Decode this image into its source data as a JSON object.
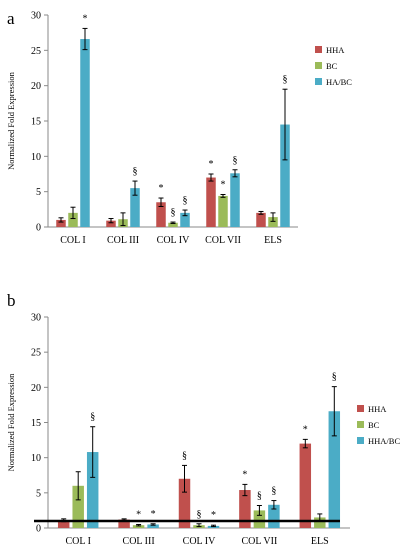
{
  "chart_data": [
    {
      "type": "bar",
      "panel_label": "a",
      "title": "",
      "xlabel": "",
      "ylabel": "Normalized Fold Expression",
      "ylim": [
        0,
        30
      ],
      "yticks": [
        "0",
        "5",
        "10",
        "15",
        "20",
        "25",
        "30"
      ],
      "categories": [
        "COL I",
        "COL III",
        "COL IV",
        "COL VII",
        "ELS"
      ],
      "legend_position": "right",
      "series": [
        {
          "name": "HHA",
          "color": "#c0504d",
          "values": [
            1.0,
            0.9,
            3.5,
            7.0,
            2.0
          ],
          "errors": [
            0.3,
            0.3,
            0.6,
            0.5,
            0.2
          ]
        },
        {
          "name": "BC",
          "color": "#9bbb59",
          "values": [
            2.0,
            1.1,
            0.6,
            4.4,
            1.4
          ],
          "errors": [
            0.8,
            0.9,
            0.1,
            0.2,
            0.6
          ]
        },
        {
          "name": "HA/BC",
          "color": "#4bacc6",
          "values": [
            26.6,
            5.5,
            2.0,
            7.6,
            14.5
          ],
          "errors": [
            1.5,
            1.0,
            0.4,
            0.5,
            5.0
          ]
        }
      ],
      "annotations": [
        {
          "category": 0,
          "series": 2,
          "text": "*"
        },
        {
          "category": 1,
          "series": 2,
          "text": "§"
        },
        {
          "category": 2,
          "series": 0,
          "text": "*"
        },
        {
          "category": 2,
          "series": 1,
          "text": "§"
        },
        {
          "category": 2,
          "series": 2,
          "text": "§"
        },
        {
          "category": 3,
          "series": 0,
          "text": "*"
        },
        {
          "category": 3,
          "series": 1,
          "text": "*"
        },
        {
          "category": 3,
          "series": 2,
          "text": "§"
        },
        {
          "category": 4,
          "series": 2,
          "text": "§"
        }
      ]
    },
    {
      "type": "bar",
      "panel_label": "b",
      "title": "",
      "xlabel": "",
      "ylabel": "Normalized Fold Expression",
      "ylim": [
        0,
        30
      ],
      "yticks": [
        "0",
        "5",
        "10",
        "15",
        "20",
        "25",
        "30"
      ],
      "categories": [
        "COL I",
        "COL III",
        "COL IV",
        "COL VII",
        "ELS"
      ],
      "legend_position": "right",
      "baseline": 1,
      "series": [
        {
          "name": "HHA",
          "color": "#c0504d",
          "values": [
            1.1,
            1.2,
            7.0,
            5.4,
            12.0
          ],
          "errors": [
            0.2,
            0.1,
            1.9,
            0.8,
            0.6
          ]
        },
        {
          "name": "BC",
          "color": "#9bbb59",
          "values": [
            6.0,
            0.4,
            0.4,
            2.5,
            1.5
          ],
          "errors": [
            2.0,
            0.1,
            0.2,
            0.7,
            0.5
          ]
        },
        {
          "name": "HHA/BC",
          "color": "#4bacc6",
          "values": [
            10.8,
            0.5,
            0.3,
            3.3,
            16.6
          ],
          "errors": [
            3.6,
            0.1,
            0.1,
            0.6,
            3.5
          ]
        }
      ],
      "annotations": [
        {
          "category": 0,
          "series": 2,
          "text": "§"
        },
        {
          "category": 1,
          "series": 1,
          "text": "*"
        },
        {
          "category": 1,
          "series": 2,
          "text": "*"
        },
        {
          "category": 2,
          "series": 0,
          "text": "§"
        },
        {
          "category": 2,
          "series": 1,
          "text": "§"
        },
        {
          "category": 2,
          "series": 2,
          "text": "*"
        },
        {
          "category": 3,
          "series": 0,
          "text": "*"
        },
        {
          "category": 3,
          "series": 1,
          "text": "§"
        },
        {
          "category": 3,
          "series": 2,
          "text": "§"
        },
        {
          "category": 4,
          "series": 0,
          "text": "*"
        },
        {
          "category": 4,
          "series": 2,
          "text": "§"
        }
      ]
    }
  ]
}
